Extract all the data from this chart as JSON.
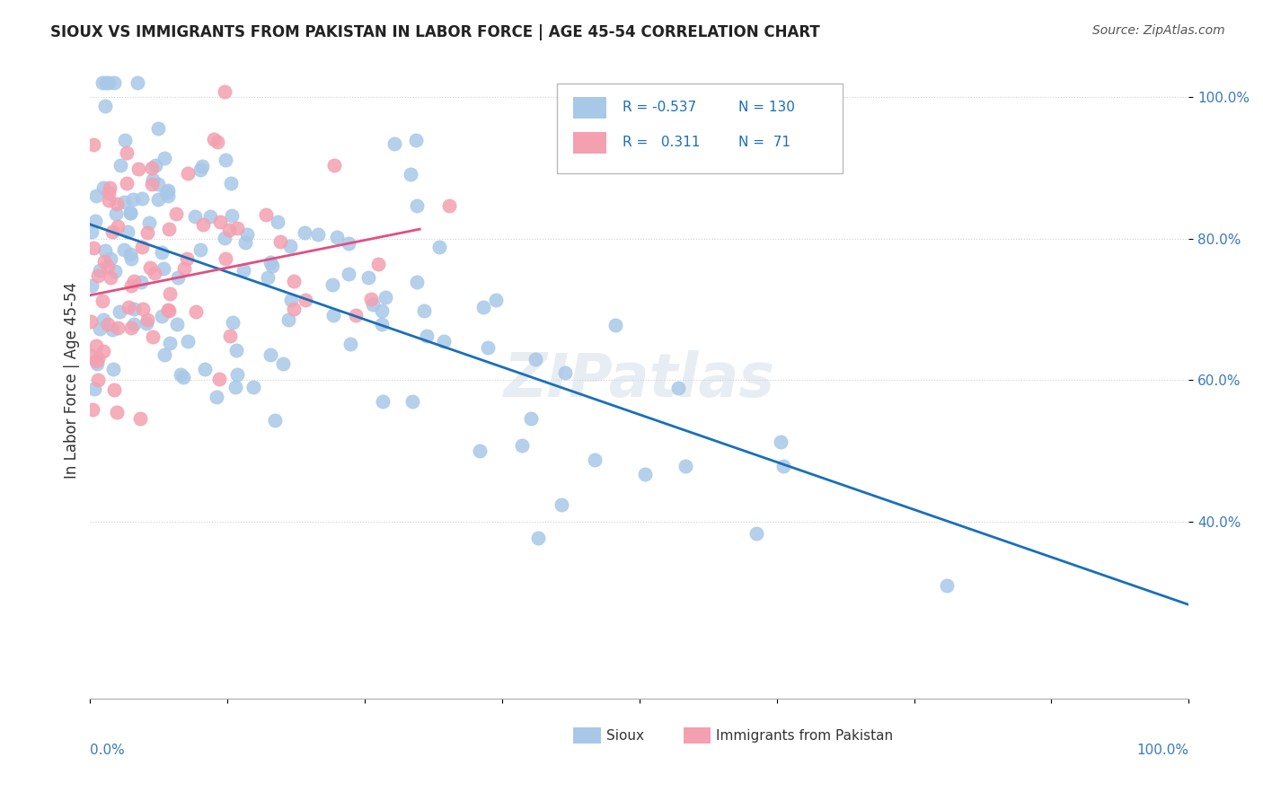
{
  "title": "SIOUX VS IMMIGRANTS FROM PAKISTAN IN LABOR FORCE | AGE 45-54 CORRELATION CHART",
  "source": "Source: ZipAtlas.com",
  "ylabel": "In Labor Force | Age 45-54",
  "xlim": [
    0.0,
    1.0
  ],
  "ylim": [
    0.15,
    1.05
  ],
  "yticks": [
    0.4,
    0.6,
    0.8,
    1.0
  ],
  "ytick_labels": [
    "40.0%",
    "60.0%",
    "80.0%",
    "100.0%"
  ],
  "legend_r_blue": "-0.537",
  "legend_n_blue": "130",
  "legend_r_pink": "0.311",
  "legend_n_pink": "71",
  "blue_color": "#a8c8e8",
  "pink_color": "#f4a0b0",
  "trend_blue": "#1a6fba",
  "trend_pink": "#e05080",
  "watermark": "ZIPatlas",
  "blue_seed": 42,
  "pink_seed": 99,
  "n_blue": 130,
  "n_pink": 71,
  "blue_slope": -0.537,
  "blue_intercept": 0.82,
  "pink_slope": 0.311,
  "pink_intercept": 0.72,
  "background_color": "#ffffff",
  "grid_color": "#d0d0d0"
}
